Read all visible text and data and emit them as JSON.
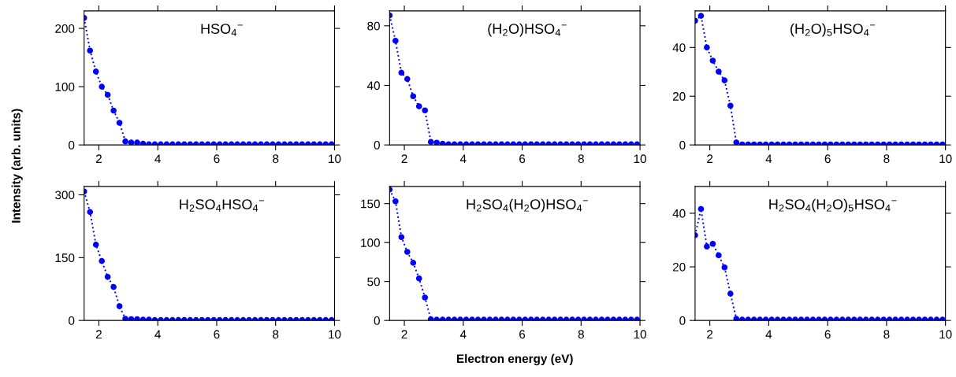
{
  "chart_data": [
    {
      "type": "line",
      "annotations": [
        "HSO$_{4}$$^{−}$"
      ],
      "ylabel": "Intensity (arb. units)",
      "x": [
        1.5,
        1.7,
        1.9,
        2.1,
        2.3,
        2.5,
        2.7,
        2.9,
        3.1,
        3.3,
        3.5,
        3.7,
        3.9,
        4.1,
        4.3,
        4.5,
        4.7,
        4.9,
        5.1,
        5.3,
        5.5,
        5.7,
        5.9,
        6.1,
        6.3,
        6.5,
        6.7,
        6.9,
        7.1,
        7.3,
        7.5,
        7.7,
        7.9,
        8.1,
        8.3,
        8.5,
        8.7,
        8.9,
        9.1,
        9.3,
        9.5,
        9.7,
        9.9
      ],
      "series": [
        {
          "color": "#0000ff",
          "values": [
            218,
            162,
            126,
            100,
            86,
            59,
            38,
            6,
            4,
            4,
            2,
            1,
            1,
            1,
            1,
            1,
            1,
            1,
            1,
            1,
            1,
            1,
            1,
            1,
            1,
            1,
            1,
            1,
            1,
            1,
            1,
            1,
            1,
            1,
            1,
            1,
            1,
            1,
            1,
            1,
            1,
            1,
            1
          ]
        }
      ],
      "xlim": [
        1.5,
        10
      ],
      "ylim": [
        0,
        230
      ],
      "xticks": [
        2,
        4,
        6,
        8,
        10
      ],
      "yticks": [
        0,
        100,
        200
      ],
      "marker": "circle",
      "line_style": "dotted",
      "grid": false
    },
    {
      "type": "line",
      "annotations": [
        "(H$_{2}$O)HSO$_{4}$$^{−}$"
      ],
      "x": [
        1.5,
        1.7,
        1.9,
        2.1,
        2.3,
        2.5,
        2.7,
        2.9,
        3.1,
        3.3,
        3.5,
        3.7,
        3.9,
        4.1,
        4.3,
        4.5,
        4.7,
        4.9,
        5.1,
        5.3,
        5.5,
        5.7,
        5.9,
        6.1,
        6.3,
        6.5,
        6.7,
        6.9,
        7.1,
        7.3,
        7.5,
        7.7,
        7.9,
        8.1,
        8.3,
        8.5,
        8.7,
        8.9,
        9.1,
        9.3,
        9.5,
        9.7,
        9.9
      ],
      "series": [
        {
          "color": "#0000ff",
          "values": [
            87,
            70,
            48.5,
            44.3,
            32.7,
            26,
            23.2,
            2,
            1.5,
            0.8,
            0.4,
            0.4,
            0.4,
            0.4,
            0.4,
            0.4,
            0.4,
            0.4,
            0.4,
            0.4,
            0.4,
            0.4,
            0.4,
            0.4,
            0.4,
            0.4,
            0.4,
            0.4,
            0.4,
            0.4,
            0.4,
            0.4,
            0.4,
            0.4,
            0.4,
            0.4,
            0.4,
            0.4,
            0.4,
            0.4,
            0.4,
            0.4,
            0.4
          ]
        }
      ],
      "xlim": [
        1.5,
        10
      ],
      "ylim": [
        0,
        90
      ],
      "xticks": [
        2,
        4,
        6,
        8,
        10
      ],
      "yticks": [
        0,
        40,
        80
      ],
      "marker": "circle",
      "line_style": "dotted",
      "grid": false
    },
    {
      "type": "line",
      "annotations": [
        "(H$_{2}$O)$_{5}$HSO$_{4}$$^{−}$"
      ],
      "x": [
        1.5,
        1.7,
        1.9,
        2.1,
        2.3,
        2.5,
        2.7,
        2.9,
        3.1,
        3.3,
        3.5,
        3.7,
        3.9,
        4.1,
        4.3,
        4.5,
        4.7,
        4.9,
        5.1,
        5.3,
        5.5,
        5.7,
        5.9,
        6.1,
        6.3,
        6.5,
        6.7,
        6.9,
        7.1,
        7.3,
        7.5,
        7.7,
        7.9,
        8.1,
        8.3,
        8.5,
        8.7,
        8.9,
        9.1,
        9.3,
        9.5,
        9.7,
        9.9
      ],
      "series": [
        {
          "color": "#0000ff",
          "values": [
            51,
            53,
            40,
            34.6,
            30.1,
            26.5,
            16.1,
            1,
            0.2,
            0.2,
            0.2,
            0.2,
            0.2,
            0.2,
            0.2,
            0.2,
            0.2,
            0.2,
            0.2,
            0.2,
            0.2,
            0.2,
            0.2,
            0.2,
            0.2,
            0.2,
            0.2,
            0.2,
            0.2,
            0.2,
            0.2,
            0.2,
            0.2,
            0.2,
            0.2,
            0.2,
            0.2,
            0.2,
            0.2,
            0.2,
            0.2,
            0.2,
            0.2
          ]
        }
      ],
      "xlim": [
        1.5,
        10
      ],
      "ylim": [
        0,
        55
      ],
      "xticks": [
        2,
        4,
        6,
        8,
        10
      ],
      "yticks": [
        0,
        20,
        40
      ],
      "marker": "circle",
      "line_style": "dotted",
      "grid": false
    },
    {
      "type": "line",
      "annotations": [
        "H$_{2}$SO$_{4}$HSO$_{4}$$^{−}$"
      ],
      "x": [
        1.5,
        1.7,
        1.9,
        2.1,
        2.3,
        2.5,
        2.7,
        2.9,
        3.1,
        3.3,
        3.5,
        3.7,
        3.9,
        4.1,
        4.3,
        4.5,
        4.7,
        4.9,
        5.1,
        5.3,
        5.5,
        5.7,
        5.9,
        6.1,
        6.3,
        6.5,
        6.7,
        6.9,
        7.1,
        7.3,
        7.5,
        7.7,
        7.9,
        8.1,
        8.3,
        8.5,
        8.7,
        8.9,
        9.1,
        9.3,
        9.5,
        9.7,
        9.9
      ],
      "series": [
        {
          "color": "#0000ff",
          "values": [
            308,
            259,
            181,
            142,
            104,
            80,
            34,
            4,
            3,
            3,
            2,
            2,
            1,
            1,
            1,
            1,
            1,
            1,
            1,
            1,
            1,
            1,
            1,
            1,
            1,
            1,
            1,
            1,
            1,
            1,
            1,
            1,
            1,
            1,
            1,
            1,
            1,
            1,
            1,
            1,
            1,
            1,
            1
          ]
        }
      ],
      "xlim": [
        1.5,
        10
      ],
      "ylim": [
        0,
        320
      ],
      "xticks": [
        2,
        4,
        6,
        8,
        10
      ],
      "yticks": [
        0,
        150,
        300
      ],
      "marker": "circle",
      "line_style": "dotted",
      "grid": false
    },
    {
      "type": "line",
      "annotations": [
        "H$_{2}$SO$_{4}$(H$_{2}$O)HSO$_{4}$$^{−}$"
      ],
      "xlabel": "Electron energy (eV)",
      "x": [
        1.5,
        1.7,
        1.9,
        2.1,
        2.3,
        2.5,
        2.7,
        2.9,
        3.1,
        3.3,
        3.5,
        3.7,
        3.9,
        4.1,
        4.3,
        4.5,
        4.7,
        4.9,
        5.1,
        5.3,
        5.5,
        5.7,
        5.9,
        6.1,
        6.3,
        6.5,
        6.7,
        6.9,
        7.1,
        7.3,
        7.5,
        7.7,
        7.9,
        8.1,
        8.3,
        8.5,
        8.7,
        8.9,
        9.1,
        9.3,
        9.5,
        9.7,
        9.9
      ],
      "series": [
        {
          "color": "#0000ff",
          "values": [
            168,
            153,
            107,
            88,
            74,
            54,
            29.4,
            1.5,
            1,
            1,
            1,
            1,
            1,
            1,
            1,
            1,
            1,
            1,
            1,
            1,
            1,
            1,
            1,
            1,
            1,
            1,
            1,
            1,
            1,
            1,
            1,
            1,
            1,
            1,
            1,
            1,
            1,
            1,
            1,
            1,
            1,
            1,
            1
          ]
        }
      ],
      "xlim": [
        1.5,
        10
      ],
      "ylim": [
        0,
        172
      ],
      "xticks": [
        2,
        4,
        6,
        8,
        10
      ],
      "yticks": [
        0,
        50,
        100,
        150
      ],
      "marker": "circle",
      "line_style": "dotted",
      "grid": false
    },
    {
      "type": "line",
      "annotations": [
        "H$_{2}$SO$_{4}$(H$_{2}$O)$_{5}$HSO$_{4}$$^{−}$"
      ],
      "x": [
        1.5,
        1.7,
        1.9,
        2.1,
        2.3,
        2.5,
        2.7,
        2.9,
        3.1,
        3.3,
        3.5,
        3.7,
        3.9,
        4.1,
        4.3,
        4.5,
        4.7,
        4.9,
        5.1,
        5.3,
        5.5,
        5.7,
        5.9,
        6.1,
        6.3,
        6.5,
        6.7,
        6.9,
        7.1,
        7.3,
        7.5,
        7.7,
        7.9,
        8.1,
        8.3,
        8.5,
        8.7,
        8.9,
        9.1,
        9.3,
        9.5,
        9.7,
        9.9
      ],
      "series": [
        {
          "color": "#0000ff",
          "values": [
            31.8,
            41.6,
            27.6,
            28.6,
            24.3,
            19.8,
            10,
            0.6,
            0.3,
            0.3,
            0.3,
            0.3,
            0.3,
            0.3,
            0.3,
            0.3,
            0.3,
            0.3,
            0.3,
            0.3,
            0.3,
            0.3,
            0.3,
            0.3,
            0.3,
            0.3,
            0.3,
            0.3,
            0.3,
            0.3,
            0.3,
            0.3,
            0.3,
            0.3,
            0.3,
            0.3,
            0.3,
            0.3,
            0.3,
            0.3,
            0.3,
            0.3,
            0.3
          ]
        }
      ],
      "xlim": [
        1.5,
        10
      ],
      "ylim": [
        0,
        50
      ],
      "xticks": [
        2,
        4,
        6,
        8,
        10
      ],
      "yticks": [
        0,
        20,
        40
      ],
      "marker": "circle",
      "line_style": "dotted",
      "grid": false
    }
  ]
}
